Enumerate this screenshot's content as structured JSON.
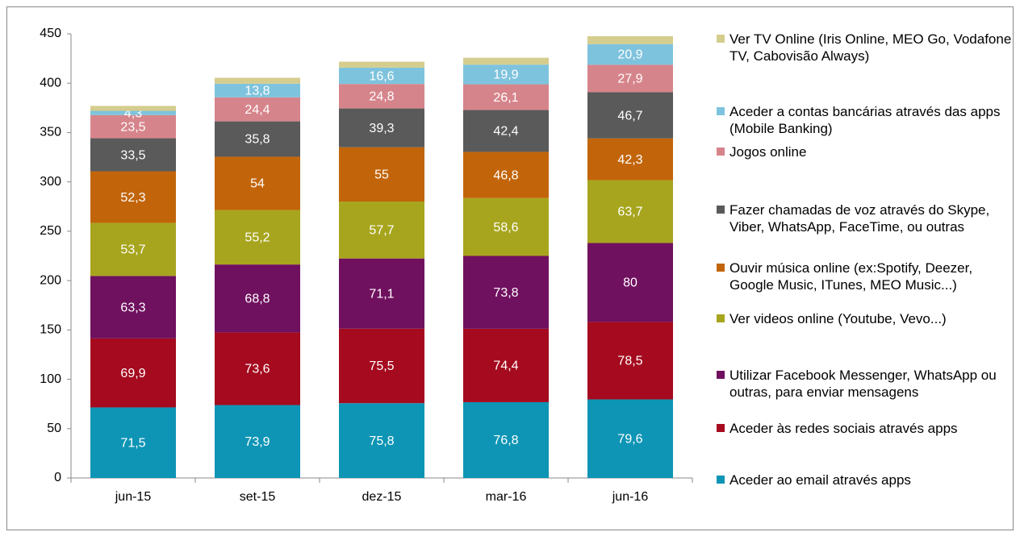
{
  "chart_data": {
    "type": "stacked-bar",
    "categories": [
      "jun-15",
      "set-15",
      "dez-15",
      "mar-16",
      "jun-16"
    ],
    "ylim": [
      0,
      450
    ],
    "yticks": [
      0,
      50,
      100,
      150,
      200,
      250,
      300,
      350,
      400,
      450
    ],
    "grid": false,
    "legend": "right",
    "series": [
      {
        "name": "Aceder ao email através apps",
        "color": "#0e95b5",
        "values": [
          71.5,
          73.9,
          75.8,
          76.8,
          79.6
        ],
        "value_labels": [
          "71,5",
          "73,9",
          "75,8",
          "76,8",
          "79,6"
        ]
      },
      {
        "name": "Aceder às redes sociais através apps",
        "color": "#a50a1e",
        "values": [
          69.9,
          73.6,
          75.5,
          74.4,
          78.5
        ],
        "value_labels": [
          "69,9",
          "73,6",
          "75,5",
          "74,4",
          "78,5"
        ]
      },
      {
        "name": "Utilizar Facebook Messenger, WhatsApp ou outras, para enviar mensagens",
        "color": "#70115f",
        "values": [
          63.3,
          68.8,
          71.1,
          73.8,
          80
        ],
        "value_labels": [
          "63,3",
          "68,8",
          "71,1",
          "73,8",
          "80"
        ]
      },
      {
        "name": "Ver videos online (Youtube, Vevo...)",
        "color": "#a7a51d",
        "values": [
          53.7,
          55.2,
          57.7,
          58.6,
          63.7
        ],
        "value_labels": [
          "53,7",
          "55,2",
          "57,7",
          "58,6",
          "63,7"
        ]
      },
      {
        "name": "Ouvir música online (ex:Spotify, Deezer, Google Music, ITunes, MEO Music...)",
        "color": "#c2650a",
        "values": [
          52.3,
          54,
          55,
          46.8,
          42.3
        ],
        "value_labels": [
          "52,3",
          "54",
          "55",
          "46,8",
          "42,3"
        ]
      },
      {
        "name": "Fazer chamadas de voz através do Skype, Viber, WhatsApp, FaceTime, ou outras",
        "color": "#5a5a5a",
        "values": [
          33.5,
          35.8,
          39.3,
          42.4,
          46.7
        ],
        "value_labels": [
          "33,5",
          "35,8",
          "39,3",
          "42,4",
          "46,7"
        ]
      },
      {
        "name": "Jogos online",
        "color": "#d6848b",
        "values": [
          23.5,
          24.4,
          24.8,
          26.1,
          27.9
        ],
        "value_labels": [
          "23,5",
          "24,4",
          "24,8",
          "26,1",
          "27,9"
        ]
      },
      {
        "name": "Aceder a contas bancárias através das apps (Mobile Banking)",
        "color": "#7ec3dd",
        "values": [
          4.3,
          13.8,
          16.6,
          19.9,
          20.9
        ],
        "value_labels": [
          "4,3",
          "13,8",
          "16,6",
          "19,9",
          "20,9"
        ]
      },
      {
        "name": "Ver TV Online (Iris Online, MEO Go, Vodafone TV, Cabovisão Always)",
        "color": "#d5cd8e",
        "values": [
          5,
          6,
          6,
          7,
          8
        ]
      }
    ]
  }
}
